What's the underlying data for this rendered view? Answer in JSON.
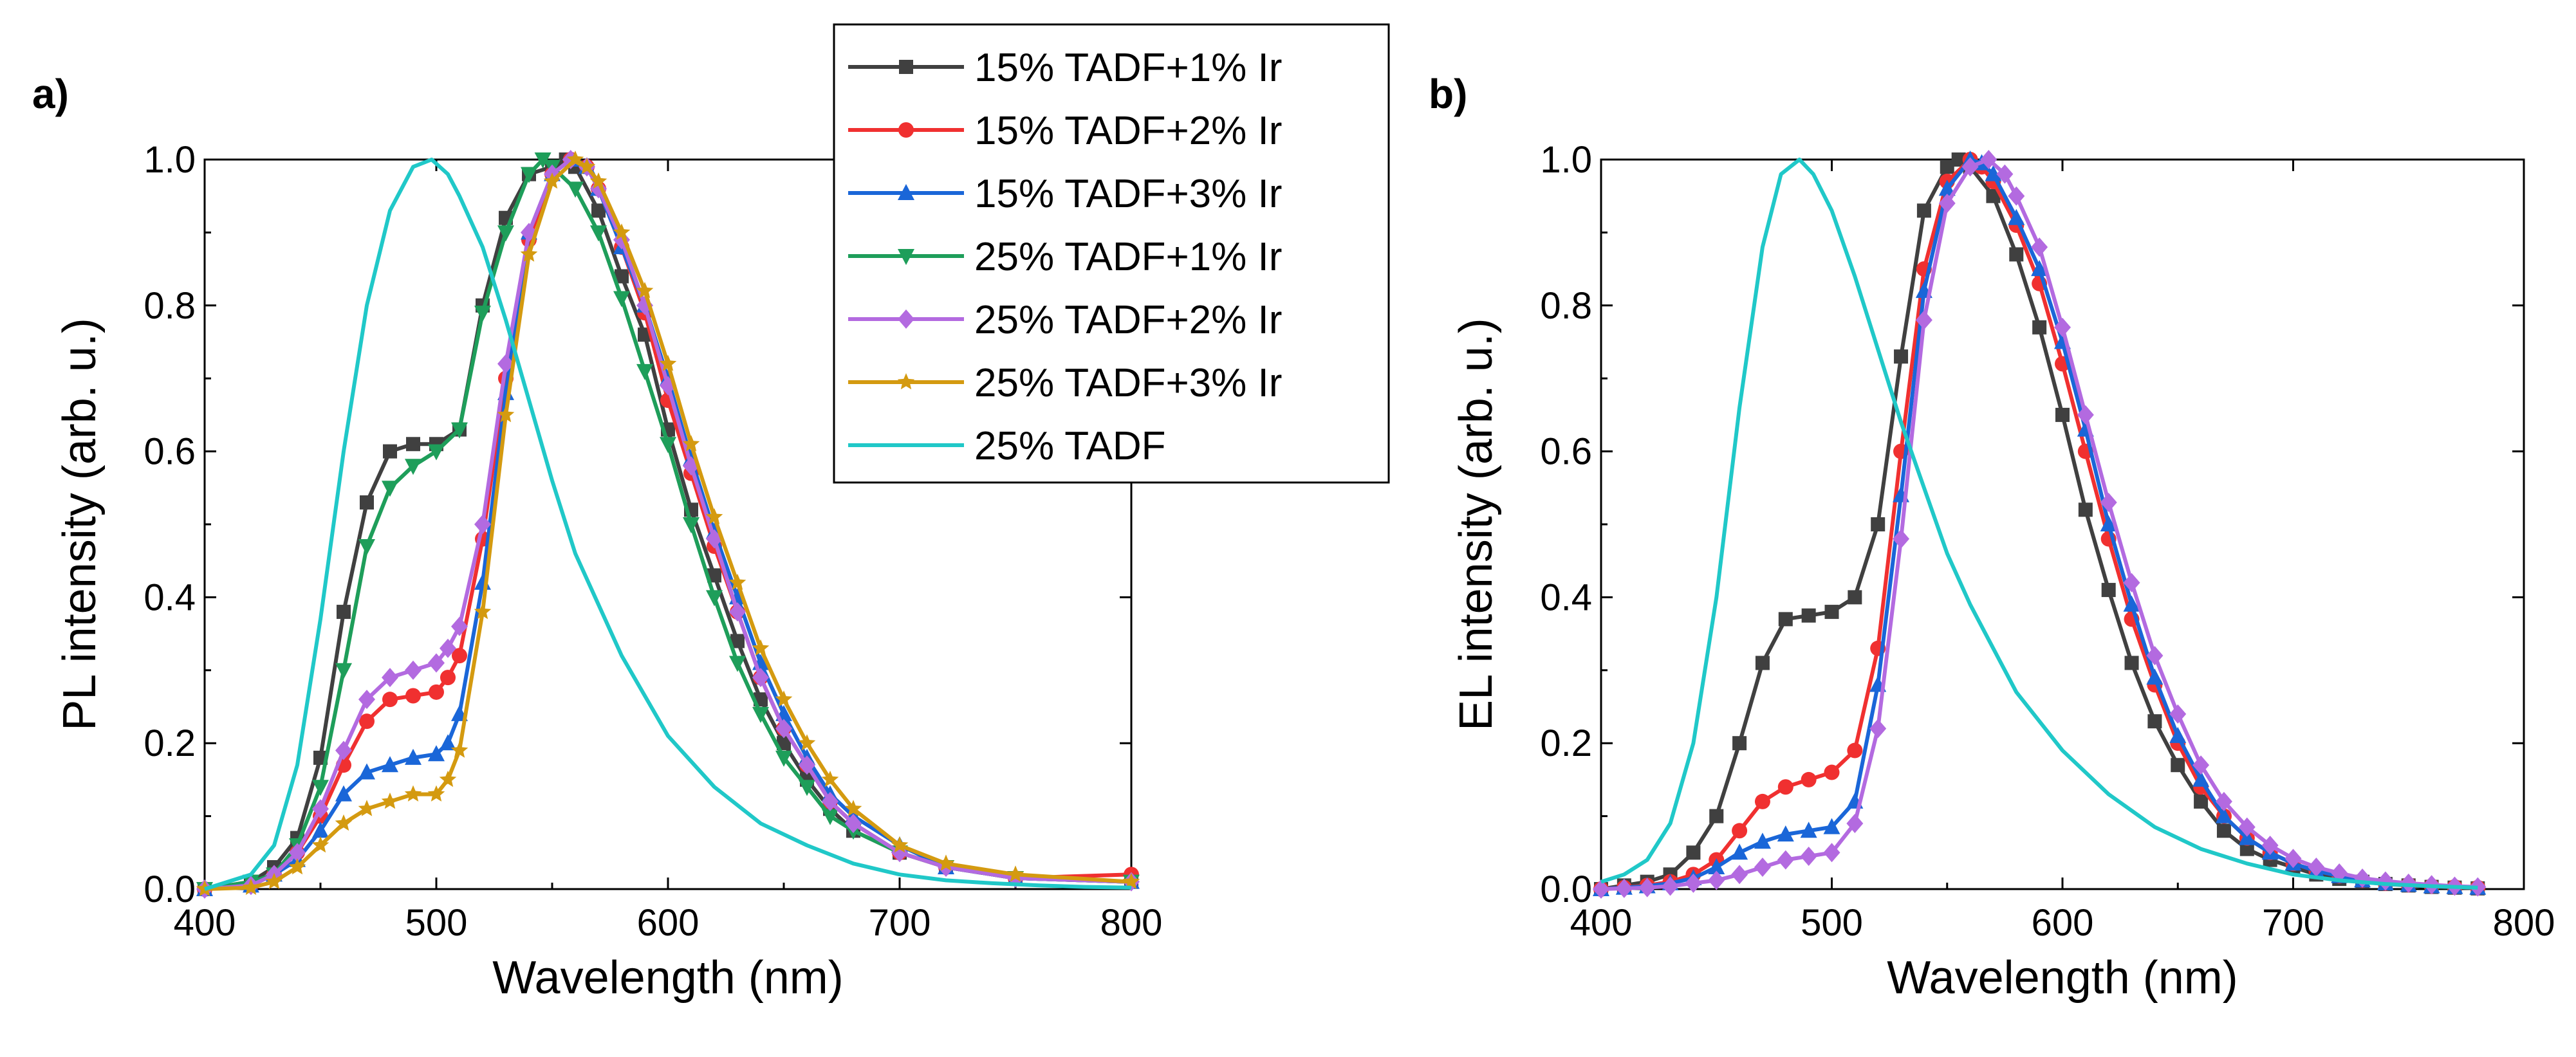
{
  "panels": [
    {
      "label": "a)",
      "ylabel": "PL intensity (arb. u.)",
      "xlabel": "Wavelength (nm)",
      "xlim": [
        400,
        800
      ],
      "ylim": [
        0,
        1.0
      ],
      "xticks": [
        "400",
        "500",
        "600",
        "700",
        "800"
      ],
      "yticks": [
        "0.0",
        "0.2",
        "0.4",
        "0.6",
        "0.8",
        "1.0"
      ]
    },
    {
      "label": "b)",
      "ylabel": "EL intensity (arb. u.)",
      "xlabel": "Wavelength (nm)",
      "xlim": [
        400,
        800
      ],
      "ylim": [
        0,
        1.0
      ],
      "xticks": [
        "400",
        "500",
        "600",
        "700",
        "800"
      ],
      "yticks": [
        "0.0",
        "0.2",
        "0.4",
        "0.6",
        "0.8",
        "1.0"
      ]
    }
  ],
  "legend": [
    {
      "name": "15% TADF+1% Ir",
      "color": "#404040",
      "marker": "square"
    },
    {
      "name": "15% TADF+2% Ir",
      "color": "#f03030",
      "marker": "circle"
    },
    {
      "name": "15% TADF+3% Ir",
      "color": "#1a66d8",
      "marker": "triangle-up"
    },
    {
      "name": "25% TADF+1% Ir",
      "color": "#1e9e5a",
      "marker": "triangle-down"
    },
    {
      "name": "25% TADF+2% Ir",
      "color": "#b36ae0",
      "marker": "diamond"
    },
    {
      "name": "25% TADF+3% Ir",
      "color": "#d49a10",
      "marker": "star"
    },
    {
      "name": "25% TADF",
      "color": "#20c8c8",
      "marker": "none"
    }
  ],
  "chart_data": [
    {
      "type": "line",
      "title": "a)",
      "xlabel": "Wavelength (nm)",
      "ylabel": "PL intensity (arb. u.)",
      "xlim": [
        400,
        800
      ],
      "ylim": [
        0,
        1.0
      ],
      "series": [
        {
          "name": "15% TADF+1% Ir",
          "x": [
            400,
            420,
            430,
            440,
            450,
            460,
            470,
            480,
            490,
            500,
            510,
            520,
            530,
            540,
            550,
            556,
            560,
            570,
            580,
            590,
            600,
            610,
            620,
            630,
            640,
            650,
            660,
            670,
            680,
            700,
            720,
            750,
            800
          ],
          "y": [
            0,
            0.01,
            0.03,
            0.07,
            0.18,
            0.38,
            0.53,
            0.6,
            0.61,
            0.61,
            0.63,
            0.8,
            0.92,
            0.98,
            0.99,
            1.0,
            0.99,
            0.93,
            0.84,
            0.76,
            0.63,
            0.52,
            0.43,
            0.34,
            0.26,
            0.2,
            0.15,
            0.11,
            0.08,
            0.05,
            0.03,
            0.015,
            0.01
          ]
        },
        {
          "name": "15% TADF+2% Ir",
          "x": [
            400,
            420,
            430,
            440,
            450,
            460,
            470,
            480,
            490,
            500,
            505,
            510,
            520,
            530,
            540,
            550,
            558,
            565,
            570,
            580,
            590,
            600,
            610,
            620,
            630,
            640,
            650,
            660,
            670,
            680,
            700,
            720,
            750,
            800
          ],
          "y": [
            0,
            0.005,
            0.02,
            0.05,
            0.1,
            0.17,
            0.23,
            0.26,
            0.265,
            0.27,
            0.29,
            0.32,
            0.48,
            0.7,
            0.89,
            0.98,
            1.0,
            0.99,
            0.96,
            0.88,
            0.79,
            0.67,
            0.57,
            0.47,
            0.38,
            0.29,
            0.22,
            0.17,
            0.12,
            0.09,
            0.05,
            0.03,
            0.015,
            0.02
          ]
        },
        {
          "name": "15% TADF+3% Ir",
          "x": [
            400,
            420,
            430,
            440,
            450,
            460,
            470,
            480,
            490,
            500,
            505,
            510,
            520,
            530,
            540,
            550,
            558,
            565,
            570,
            580,
            590,
            600,
            610,
            620,
            630,
            640,
            650,
            660,
            670,
            680,
            700,
            720,
            750,
            800
          ],
          "y": [
            0,
            0.005,
            0.02,
            0.04,
            0.08,
            0.13,
            0.16,
            0.17,
            0.18,
            0.185,
            0.2,
            0.24,
            0.42,
            0.68,
            0.9,
            0.98,
            1.0,
            0.99,
            0.96,
            0.88,
            0.8,
            0.7,
            0.59,
            0.49,
            0.4,
            0.31,
            0.24,
            0.18,
            0.13,
            0.1,
            0.06,
            0.03,
            0.015,
            0.01
          ]
        },
        {
          "name": "25% TADF+1% Ir",
          "x": [
            400,
            420,
            430,
            440,
            450,
            460,
            470,
            480,
            490,
            500,
            510,
            520,
            530,
            540,
            546,
            550,
            560,
            570,
            580,
            590,
            600,
            610,
            620,
            630,
            640,
            650,
            660,
            670,
            680,
            700,
            720,
            750,
            800
          ],
          "y": [
            0,
            0.01,
            0.02,
            0.06,
            0.14,
            0.3,
            0.47,
            0.55,
            0.58,
            0.6,
            0.63,
            0.79,
            0.9,
            0.98,
            1.0,
            0.99,
            0.96,
            0.9,
            0.81,
            0.71,
            0.61,
            0.5,
            0.4,
            0.31,
            0.24,
            0.18,
            0.14,
            0.1,
            0.08,
            0.05,
            0.03,
            0.015,
            0.01
          ]
        },
        {
          "name": "25% TADF+2% Ir",
          "x": [
            400,
            420,
            430,
            440,
            450,
            460,
            470,
            480,
            490,
            500,
            505,
            510,
            520,
            530,
            540,
            550,
            558,
            565,
            570,
            580,
            590,
            600,
            610,
            620,
            630,
            640,
            650,
            660,
            670,
            680,
            700,
            720,
            750,
            800
          ],
          "y": [
            0,
            0.005,
            0.02,
            0.05,
            0.11,
            0.19,
            0.26,
            0.29,
            0.3,
            0.31,
            0.33,
            0.36,
            0.5,
            0.72,
            0.9,
            0.98,
            1.0,
            0.99,
            0.96,
            0.89,
            0.8,
            0.69,
            0.58,
            0.48,
            0.38,
            0.29,
            0.22,
            0.17,
            0.12,
            0.09,
            0.05,
            0.03,
            0.015,
            0.01
          ]
        },
        {
          "name": "25% TADF+3% Ir",
          "x": [
            400,
            420,
            430,
            440,
            450,
            460,
            470,
            480,
            490,
            500,
            505,
            510,
            520,
            530,
            540,
            550,
            560,
            565,
            570,
            580,
            590,
            600,
            610,
            620,
            630,
            640,
            650,
            660,
            670,
            680,
            700,
            720,
            750,
            800
          ],
          "y": [
            0,
            0.002,
            0.01,
            0.03,
            0.06,
            0.09,
            0.11,
            0.12,
            0.13,
            0.13,
            0.15,
            0.19,
            0.38,
            0.65,
            0.87,
            0.97,
            1.0,
            0.99,
            0.97,
            0.9,
            0.82,
            0.72,
            0.61,
            0.51,
            0.42,
            0.33,
            0.26,
            0.2,
            0.15,
            0.11,
            0.06,
            0.035,
            0.02,
            0.01
          ]
        },
        {
          "name": "25% TADF",
          "x": [
            400,
            420,
            430,
            440,
            450,
            460,
            470,
            480,
            490,
            498,
            505,
            510,
            520,
            530,
            540,
            550,
            560,
            570,
            580,
            600,
            620,
            640,
            660,
            680,
            700,
            720,
            740,
            760,
            780,
            800
          ],
          "y": [
            0,
            0.02,
            0.06,
            0.17,
            0.37,
            0.6,
            0.8,
            0.93,
            0.99,
            1.0,
            0.98,
            0.95,
            0.88,
            0.78,
            0.67,
            0.56,
            0.46,
            0.39,
            0.32,
            0.21,
            0.14,
            0.09,
            0.06,
            0.035,
            0.02,
            0.012,
            0.008,
            0.005,
            0.003,
            0.002
          ]
        }
      ]
    },
    {
      "type": "line",
      "title": "b)",
      "xlabel": "Wavelength (nm)",
      "ylabel": "EL intensity (arb. u.)",
      "xlim": [
        400,
        800
      ],
      "ylim": [
        0,
        1.0
      ],
      "series": [
        {
          "name": "15% TADF+1% Ir",
          "x": [
            400,
            410,
            420,
            430,
            440,
            450,
            460,
            470,
            480,
            490,
            500,
            510,
            520,
            530,
            540,
            550,
            555,
            560,
            570,
            580,
            590,
            600,
            610,
            620,
            630,
            640,
            650,
            660,
            670,
            680,
            690,
            700,
            710,
            720,
            730,
            740,
            750,
            760,
            770,
            780
          ],
          "y": [
            0,
            0.005,
            0.01,
            0.02,
            0.05,
            0.1,
            0.2,
            0.31,
            0.37,
            0.375,
            0.38,
            0.4,
            0.5,
            0.73,
            0.93,
            0.99,
            1.0,
            0.99,
            0.95,
            0.87,
            0.77,
            0.65,
            0.52,
            0.41,
            0.31,
            0.23,
            0.17,
            0.12,
            0.08,
            0.055,
            0.04,
            0.03,
            0.02,
            0.014,
            0.01,
            0.007,
            0.005,
            0.003,
            0.002,
            0.001
          ]
        },
        {
          "name": "15% TADF+2% Ir",
          "x": [
            400,
            410,
            420,
            430,
            440,
            450,
            460,
            470,
            480,
            490,
            500,
            510,
            520,
            530,
            540,
            550,
            560,
            565,
            570,
            580,
            590,
            600,
            610,
            620,
            630,
            640,
            650,
            660,
            670,
            680,
            690,
            700,
            710,
            720,
            730,
            740,
            750,
            760,
            770,
            780
          ],
          "y": [
            0,
            0.002,
            0.005,
            0.01,
            0.02,
            0.04,
            0.08,
            0.12,
            0.14,
            0.15,
            0.16,
            0.19,
            0.33,
            0.6,
            0.85,
            0.97,
            1.0,
            0.99,
            0.97,
            0.91,
            0.83,
            0.72,
            0.6,
            0.48,
            0.37,
            0.28,
            0.2,
            0.14,
            0.1,
            0.07,
            0.05,
            0.035,
            0.025,
            0.018,
            0.012,
            0.008,
            0.006,
            0.004,
            0.003,
            0.002
          ]
        },
        {
          "name": "15% TADF+3% Ir",
          "x": [
            400,
            410,
            420,
            430,
            440,
            450,
            460,
            470,
            480,
            490,
            500,
            510,
            520,
            530,
            540,
            550,
            560,
            565,
            570,
            580,
            590,
            600,
            610,
            620,
            630,
            640,
            650,
            660,
            670,
            680,
            690,
            700,
            710,
            720,
            730,
            740,
            750,
            760,
            770,
            780
          ],
          "y": [
            0,
            0.002,
            0.004,
            0.008,
            0.015,
            0.03,
            0.05,
            0.065,
            0.075,
            0.08,
            0.085,
            0.12,
            0.28,
            0.54,
            0.82,
            0.96,
            1.0,
            0.995,
            0.98,
            0.92,
            0.85,
            0.75,
            0.63,
            0.5,
            0.39,
            0.29,
            0.21,
            0.15,
            0.1,
            0.07,
            0.05,
            0.035,
            0.025,
            0.018,
            0.012,
            0.008,
            0.006,
            0.004,
            0.003,
            0.002
          ]
        },
        {
          "name": "25% TADF+2% Ir",
          "x": [
            400,
            410,
            420,
            430,
            440,
            450,
            460,
            470,
            480,
            490,
            500,
            510,
            520,
            530,
            540,
            550,
            560,
            568,
            575,
            580,
            590,
            600,
            610,
            620,
            630,
            640,
            650,
            660,
            670,
            680,
            690,
            700,
            710,
            720,
            730,
            740,
            750,
            760,
            770,
            780
          ],
          "y": [
            0,
            0.001,
            0.002,
            0.004,
            0.008,
            0.012,
            0.02,
            0.03,
            0.04,
            0.045,
            0.05,
            0.09,
            0.22,
            0.48,
            0.78,
            0.94,
            0.99,
            1.0,
            0.98,
            0.95,
            0.88,
            0.77,
            0.65,
            0.53,
            0.42,
            0.32,
            0.24,
            0.17,
            0.12,
            0.085,
            0.06,
            0.042,
            0.03,
            0.022,
            0.015,
            0.011,
            0.008,
            0.006,
            0.004,
            0.003
          ]
        },
        {
          "name": "25% TADF",
          "x": [
            400,
            410,
            420,
            430,
            440,
            450,
            460,
            470,
            478,
            486,
            492,
            500,
            510,
            520,
            530,
            540,
            550,
            560,
            570,
            580,
            600,
            620,
            640,
            660,
            680,
            700,
            720,
            740,
            760,
            780
          ],
          "y": [
            0.01,
            0.02,
            0.04,
            0.09,
            0.2,
            0.4,
            0.66,
            0.88,
            0.98,
            1.0,
            0.98,
            0.93,
            0.84,
            0.74,
            0.64,
            0.55,
            0.46,
            0.39,
            0.33,
            0.27,
            0.19,
            0.13,
            0.085,
            0.055,
            0.035,
            0.02,
            0.012,
            0.007,
            0.004,
            0.002
          ]
        }
      ]
    }
  ]
}
